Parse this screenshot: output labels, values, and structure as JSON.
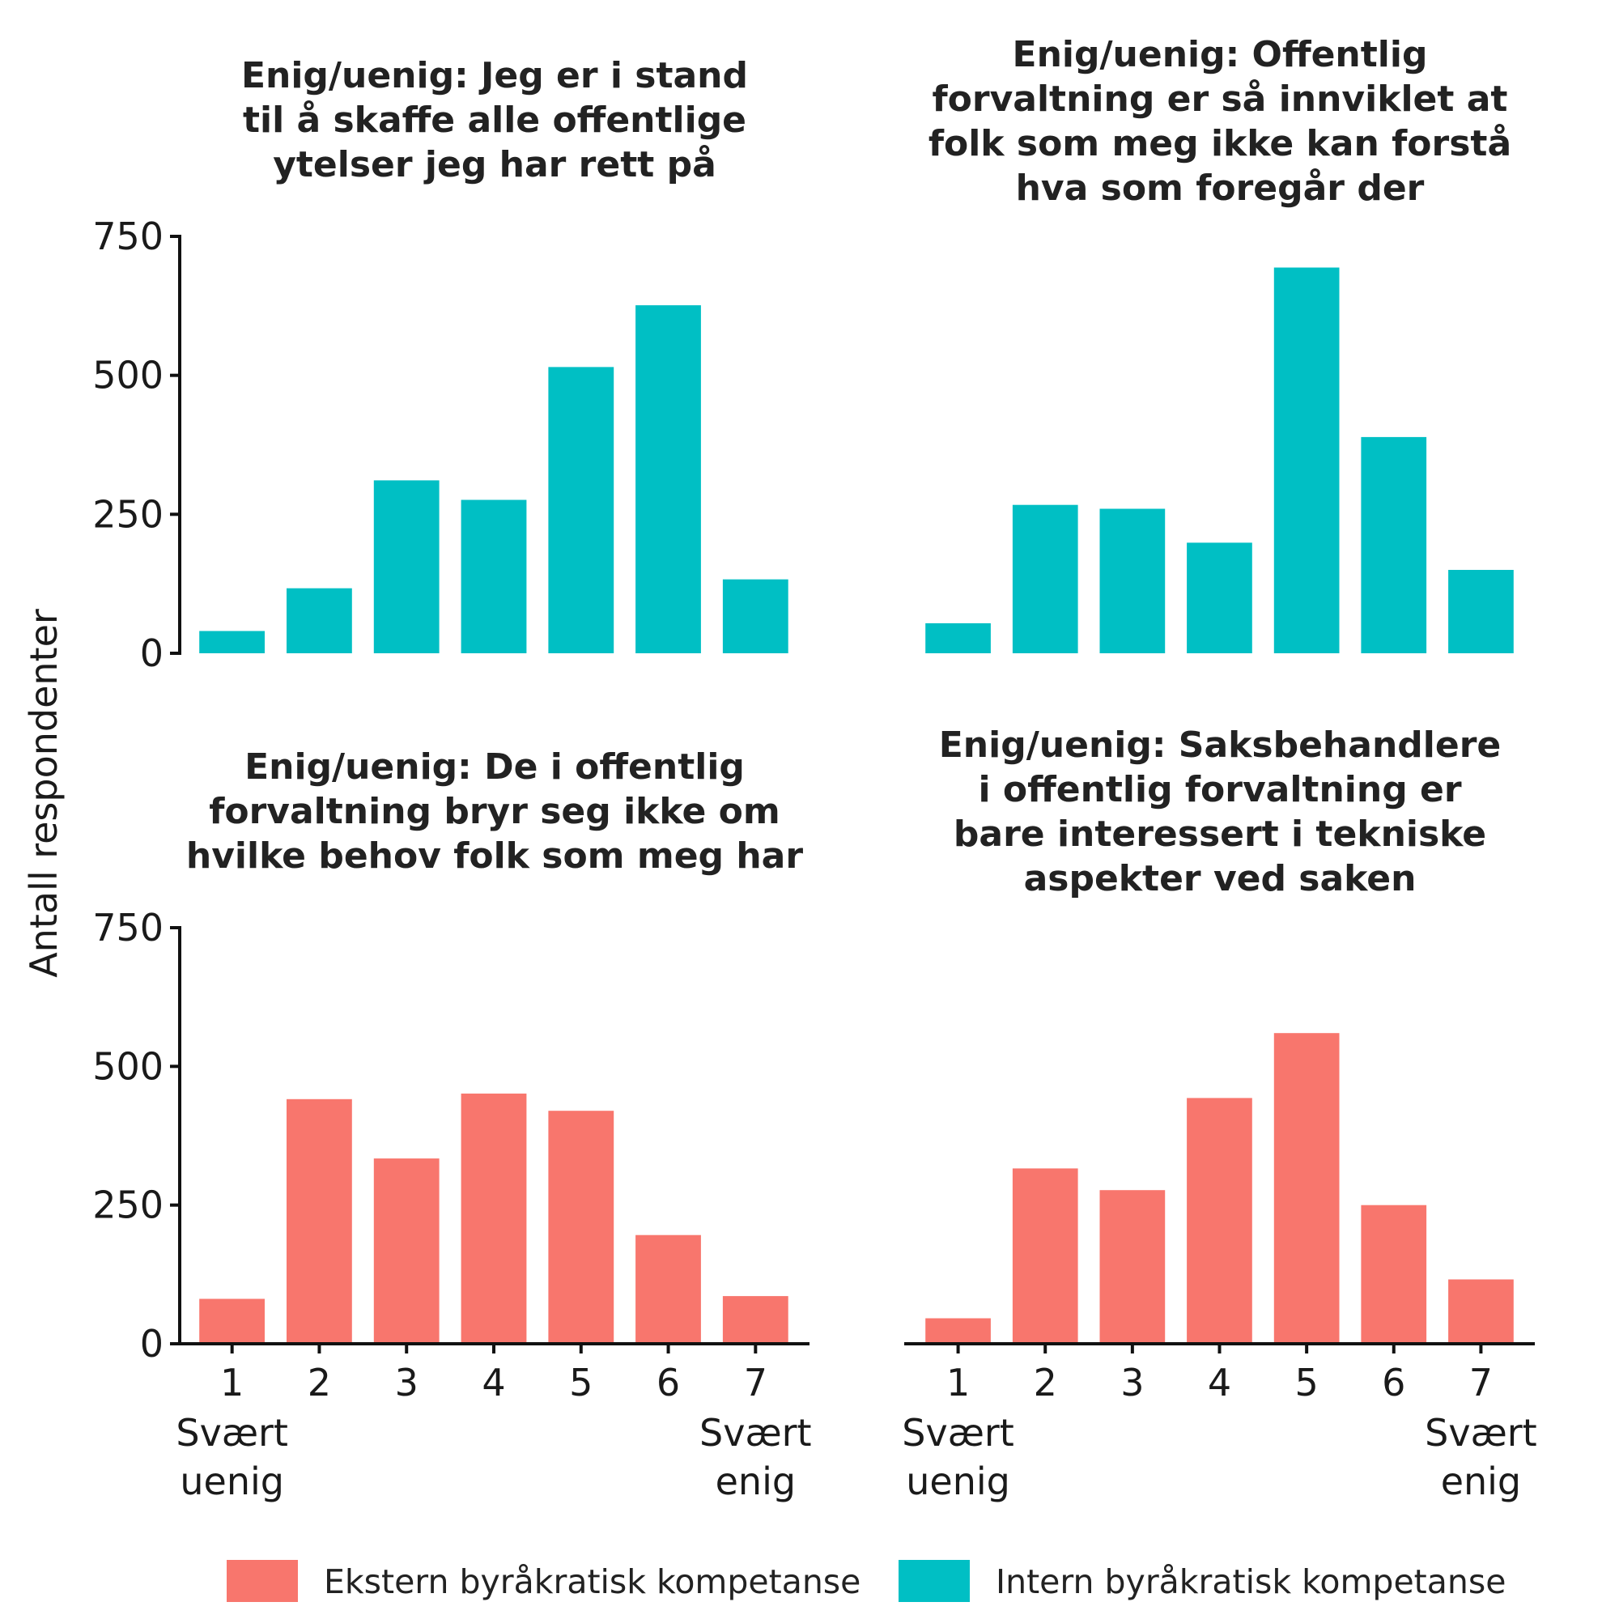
{
  "ylabel": "Antall respondenter",
  "x_ticks": [
    "1",
    "2",
    "3",
    "4",
    "5",
    "6",
    "7"
  ],
  "x_end_labels": {
    "left": [
      "Svært",
      "uenig"
    ],
    "right": [
      "Svært",
      "enig"
    ]
  },
  "y_ticks": [
    "750",
    "500",
    "250",
    "0"
  ],
  "legend": [
    {
      "label": "Ekstern byråkratisk kompetanse",
      "color": "#F8766D"
    },
    {
      "label": "Intern byråkratisk kompetanse",
      "color": "#00BFC4"
    }
  ],
  "chart_data": [
    {
      "type": "bar",
      "title": [
        "Enig/uenig: Jeg er i stand",
        "til å skaffe alle offentlige",
        "ytelser jeg har rett på"
      ],
      "categories": [
        1,
        2,
        3,
        4,
        5,
        6,
        7
      ],
      "values": [
        40,
        117,
        311,
        276,
        515,
        626,
        133
      ],
      "series": "Intern byråkratisk kompetanse",
      "color": "#00BFC4",
      "ylim": [
        0,
        750
      ],
      "xlabel": "",
      "ylabel": "Antall respondenter"
    },
    {
      "type": "bar",
      "title": [
        "Enig/uenig: Offentlig",
        "forvaltning er så innviklet at",
        "folk som meg ikke kan forstå",
        "hva som foregår der"
      ],
      "categories": [
        1,
        2,
        3,
        4,
        5,
        6,
        7
      ],
      "values": [
        54,
        267,
        260,
        199,
        694,
        389,
        150
      ],
      "series": "Intern byråkratisk kompetanse",
      "color": "#00BFC4",
      "ylim": [
        0,
        750
      ],
      "xlabel": "",
      "ylabel": "Antall respondenter"
    },
    {
      "type": "bar",
      "title": [
        "Enig/uenig: De i offentlig",
        "forvaltning bryr seg ikke om",
        "hvilke behov folk som meg har"
      ],
      "categories": [
        1,
        2,
        3,
        4,
        5,
        6,
        7
      ],
      "values": [
        81,
        441,
        334,
        451,
        420,
        196,
        86
      ],
      "series": "Ekstern byråkratisk kompetanse",
      "color": "#F8766D",
      "ylim": [
        0,
        750
      ],
      "xlabel": "",
      "ylabel": "Antall respondenter"
    },
    {
      "type": "bar",
      "title": [
        "Enig/uenig: Saksbehandlere",
        "i offentlig forvaltning er",
        "bare interessert i tekniske",
        "aspekter ved saken"
      ],
      "categories": [
        1,
        2,
        3,
        4,
        5,
        6,
        7
      ],
      "values": [
        46,
        316,
        277,
        443,
        560,
        250,
        116
      ],
      "series": "Ekstern byråkratisk kompetanse",
      "color": "#F8766D",
      "ylim": [
        0,
        750
      ],
      "xlabel": "",
      "ylabel": "Antall respondenter"
    }
  ]
}
